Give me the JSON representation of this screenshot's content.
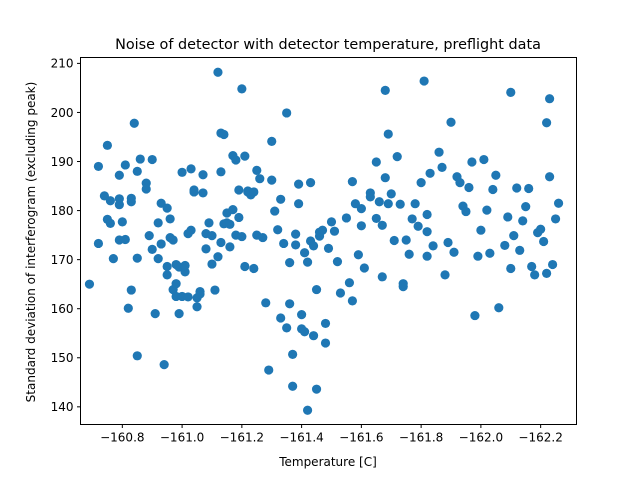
{
  "chart_data": {
    "type": "scatter",
    "title": "Noise of detector with detector temperature, preflight data",
    "xlabel": "Temperature [C]",
    "ylabel": "Standard deviation of interferogram (excluding peak)",
    "xlim": [
      -160.66,
      -162.32
    ],
    "ylim": [
      136.4,
      211.2
    ],
    "x_ticks": [
      -160.8,
      -161.0,
      -161.2,
      -161.4,
      -161.6,
      -161.8,
      -162.0,
      -162.2
    ],
    "x_tick_labels": [
      "−160.8",
      "−161.0",
      "−161.2",
      "−161.4",
      "−161.6",
      "−161.8",
      "−162.0",
      "−162.2"
    ],
    "y_ticks": [
      140,
      150,
      160,
      170,
      180,
      190,
      200,
      210
    ],
    "y_tick_labels": [
      "140",
      "150",
      "160",
      "170",
      "180",
      "190",
      "200",
      "210"
    ],
    "marker_color": "#1f77b4",
    "grid": false,
    "x": [
      -160.69,
      -160.72,
      -160.72,
      -160.74,
      -160.75,
      -160.75,
      -160.76,
      -160.76,
      -160.77,
      -160.79,
      -160.79,
      -160.79,
      -160.79,
      -160.8,
      -160.81,
      -160.81,
      -160.82,
      -160.83,
      -160.83,
      -160.83,
      -160.84,
      -160.85,
      -160.85,
      -160.85,
      -160.86,
      -160.88,
      -160.88,
      -160.89,
      -160.9,
      -160.9,
      -160.91,
      -160.92,
      -160.92,
      -160.93,
      -160.93,
      -160.94,
      -160.95,
      -160.95,
      -160.95,
      -160.96,
      -160.96,
      -160.97,
      -160.97,
      -160.98,
      -160.98,
      -160.98,
      -160.99,
      -160.99,
      -161.0,
      -161.0,
      -161.01,
      -161.01,
      -161.02,
      -161.02,
      -161.03,
      -161.03,
      -161.04,
      -161.04,
      -161.05,
      -161.05,
      -161.06,
      -161.06,
      -161.07,
      -161.07,
      -161.08,
      -161.08,
      -161.09,
      -161.1,
      -161.1,
      -161.11,
      -161.12,
      -161.12,
      -161.13,
      -161.13,
      -161.13,
      -161.14,
      -161.14,
      -161.15,
      -161.15,
      -161.16,
      -161.16,
      -161.17,
      -161.17,
      -161.18,
      -161.18,
      -161.19,
      -161.19,
      -161.2,
      -161.2,
      -161.21,
      -161.21,
      -161.22,
      -161.22,
      -161.23,
      -161.24,
      -161.24,
      -161.25,
      -161.25,
      -161.26,
      -161.27,
      -161.28,
      -161.29,
      -161.3,
      -161.3,
      -161.31,
      -161.32,
      -161.33,
      -161.33,
      -161.34,
      -161.35,
      -161.35,
      -161.36,
      -161.36,
      -161.37,
      -161.37,
      -161.38,
      -161.38,
      -161.39,
      -161.39,
      -161.4,
      -161.4,
      -161.41,
      -161.41,
      -161.42,
      -161.42,
      -161.43,
      -161.43,
      -161.44,
      -161.44,
      -161.45,
      -161.45,
      -161.46,
      -161.46,
      -161.47,
      -161.48,
      -161.48,
      -161.49,
      -161.5,
      -161.51,
      -161.52,
      -161.53,
      -161.55,
      -161.56,
      -161.57,
      -161.57,
      -161.58,
      -161.59,
      -161.6,
      -161.6,
      -161.61,
      -161.63,
      -161.63,
      -161.65,
      -161.65,
      -161.66,
      -161.67,
      -161.67,
      -161.68,
      -161.68,
      -161.69,
      -161.69,
      -161.7,
      -161.71,
      -161.72,
      -161.73,
      -161.74,
      -161.74,
      -161.75,
      -161.76,
      -161.77,
      -161.78,
      -161.79,
      -161.8,
      -161.81,
      -161.82,
      -161.82,
      -161.82,
      -161.83,
      -161.84,
      -161.86,
      -161.87,
      -161.88,
      -161.89,
      -161.9,
      -161.91,
      -161.92,
      -161.93,
      -161.94,
      -161.95,
      -161.96,
      -161.97,
      -161.98,
      -161.99,
      -162.0,
      -162.01,
      -162.02,
      -162.03,
      -162.04,
      -162.05,
      -162.06,
      -162.08,
      -162.09,
      -162.1,
      -162.1,
      -162.11,
      -162.12,
      -162.13,
      -162.14,
      -162.15,
      -162.16,
      -162.17,
      -162.18,
      -162.19,
      -162.2,
      -162.21,
      -162.22,
      -162.22,
      -162.23,
      -162.23,
      -162.24,
      -162.25,
      -162.26
    ],
    "y": [
      165.0,
      189.0,
      173.3,
      183.0,
      178.2,
      193.3,
      182.0,
      177.4,
      170.2,
      187.2,
      181.2,
      174.0,
      182.4,
      177.7,
      174.1,
      189.3,
      160.1,
      181.8,
      163.8,
      182.5,
      197.8,
      188.0,
      170.3,
      150.4,
      190.5,
      185.6,
      184.4,
      174.9,
      190.4,
      172.1,
      159.0,
      177.5,
      170.2,
      173.2,
      181.5,
      148.6,
      168.6,
      180.5,
      166.9,
      174.5,
      178.3,
      163.9,
      174.0,
      165.1,
      169.0,
      162.5,
      168.5,
      159.0,
      187.8,
      162.5,
      167.5,
      168.8,
      175.3,
      162.4,
      176.0,
      188.5,
      184.2,
      183.8,
      162.2,
      160.4,
      163.5,
      163.0,
      187.3,
      183.6,
      175.3,
      172.2,
      177.5,
      169.1,
      174.9,
      163.8,
      170.6,
      208.2,
      195.8,
      187.9,
      173.5,
      177.3,
      195.5,
      179.5,
      177.5,
      177.2,
      172.6,
      180.2,
      191.2,
      190.3,
      175.0,
      178.6,
      184.2,
      174.7,
      204.8,
      168.6,
      191.1,
      183.8,
      184.0,
      183.2,
      183.8,
      168.2,
      175.0,
      188.2,
      186.5,
      174.5,
      161.2,
      147.5,
      186.2,
      194.1,
      179.9,
      176.1,
      158.1,
      182.3,
      173.3,
      156.1,
      199.9,
      169.4,
      161.0,
      150.7,
      144.2,
      173.0,
      175.2,
      185.4,
      181.4,
      158.8,
      155.9,
      155.3,
      171.4,
      139.3,
      169.5,
      185.7,
      173.8,
      154.5,
      172.8,
      163.9,
      143.6,
      174.8,
      175.6,
      176.0,
      157.0,
      153.0,
      172.3,
      177.7,
      175.8,
      169.6,
      163.2,
      178.5,
      165.3,
      161.6,
      185.9,
      181.4,
      171.0,
      180.4,
      176.9,
      168.3,
      183.6,
      182.8,
      189.9,
      178.4,
      181.8,
      177.0,
      166.5,
      186.7,
      204.5,
      195.6,
      181.4,
      183.4,
      173.9,
      191.0,
      181.3,
      164.5,
      165.1,
      174.0,
      171.1,
      178.3,
      181.4,
      176.8,
      185.7,
      206.4,
      179.2,
      175.7,
      170.7,
      187.6,
      172.8,
      191.9,
      188.8,
      166.9,
      173.5,
      198.0,
      171.5,
      186.9,
      185.7,
      180.9,
      179.8,
      184.7,
      189.9,
      158.6,
      170.7,
      176.0,
      190.4,
      180.1,
      171.3,
      184.3,
      187.2,
      160.2,
      172.9,
      178.7,
      204.1,
      168.2,
      174.9,
      184.6,
      171.9,
      177.9,
      180.8,
      184.5,
      168.6,
      166.9,
      175.5,
      176.2,
      173.7,
      197.9,
      167.2,
      186.9,
      202.8,
      169.0,
      178.3,
      181.5
    ]
  }
}
